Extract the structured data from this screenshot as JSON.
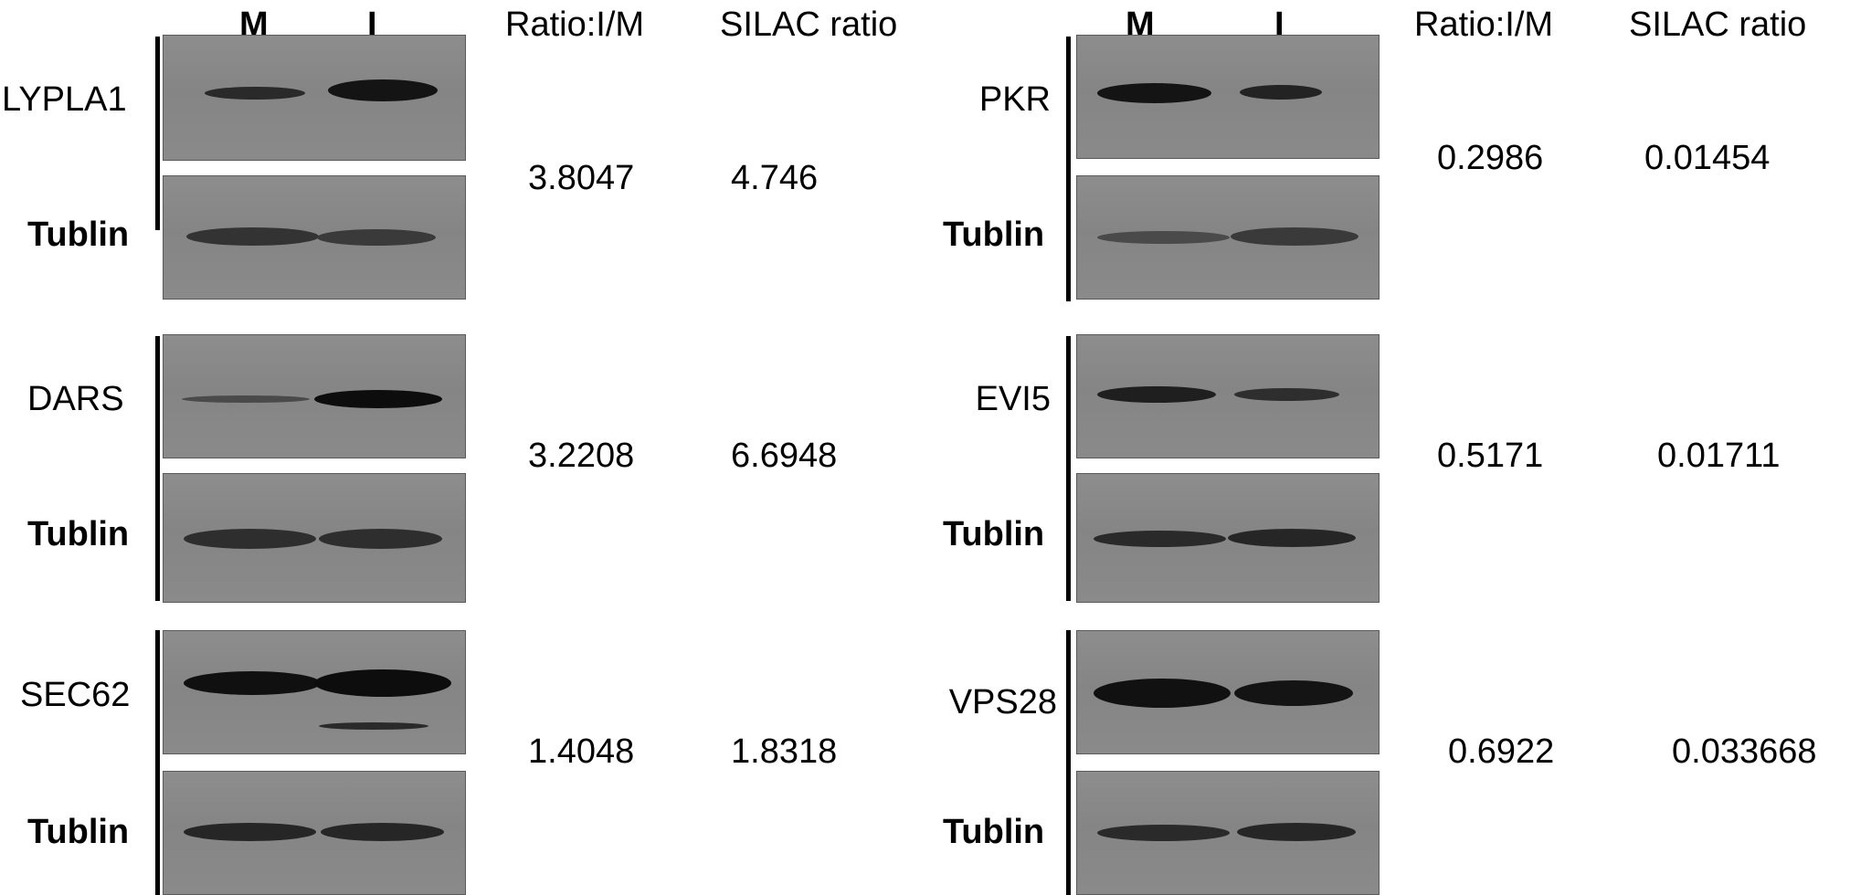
{
  "lanes": {
    "mock": "M",
    "infected": "I"
  },
  "columns": {
    "ratio": "Ratio:I/M",
    "silac": "SILAC ratio"
  },
  "panels": [
    {
      "protein": "LYPLA1",
      "loading": "Tublin",
      "ratio": "3.8047",
      "silac": "4.746"
    },
    {
      "protein": "DARS",
      "loading": "Tublin",
      "ratio": "3.2208",
      "silac": "6.6948"
    },
    {
      "protein": "SEC62",
      "loading": "Tublin",
      "ratio": "1.4048",
      "silac": "1.8318"
    },
    {
      "protein": "PKR",
      "loading": "Tublin",
      "ratio": "0.2986",
      "silac": "0.01454"
    },
    {
      "protein": "EVI5",
      "loading": "Tublin",
      "ratio": "0.5171",
      "silac": "0.01711"
    },
    {
      "protein": "VPS28",
      "loading": "Tublin",
      "ratio": "0.6922",
      "silac": "0.033668"
    }
  ],
  "colors": {
    "membrane": "#8a8a8a",
    "band": "#141414",
    "text": "#000000"
  }
}
